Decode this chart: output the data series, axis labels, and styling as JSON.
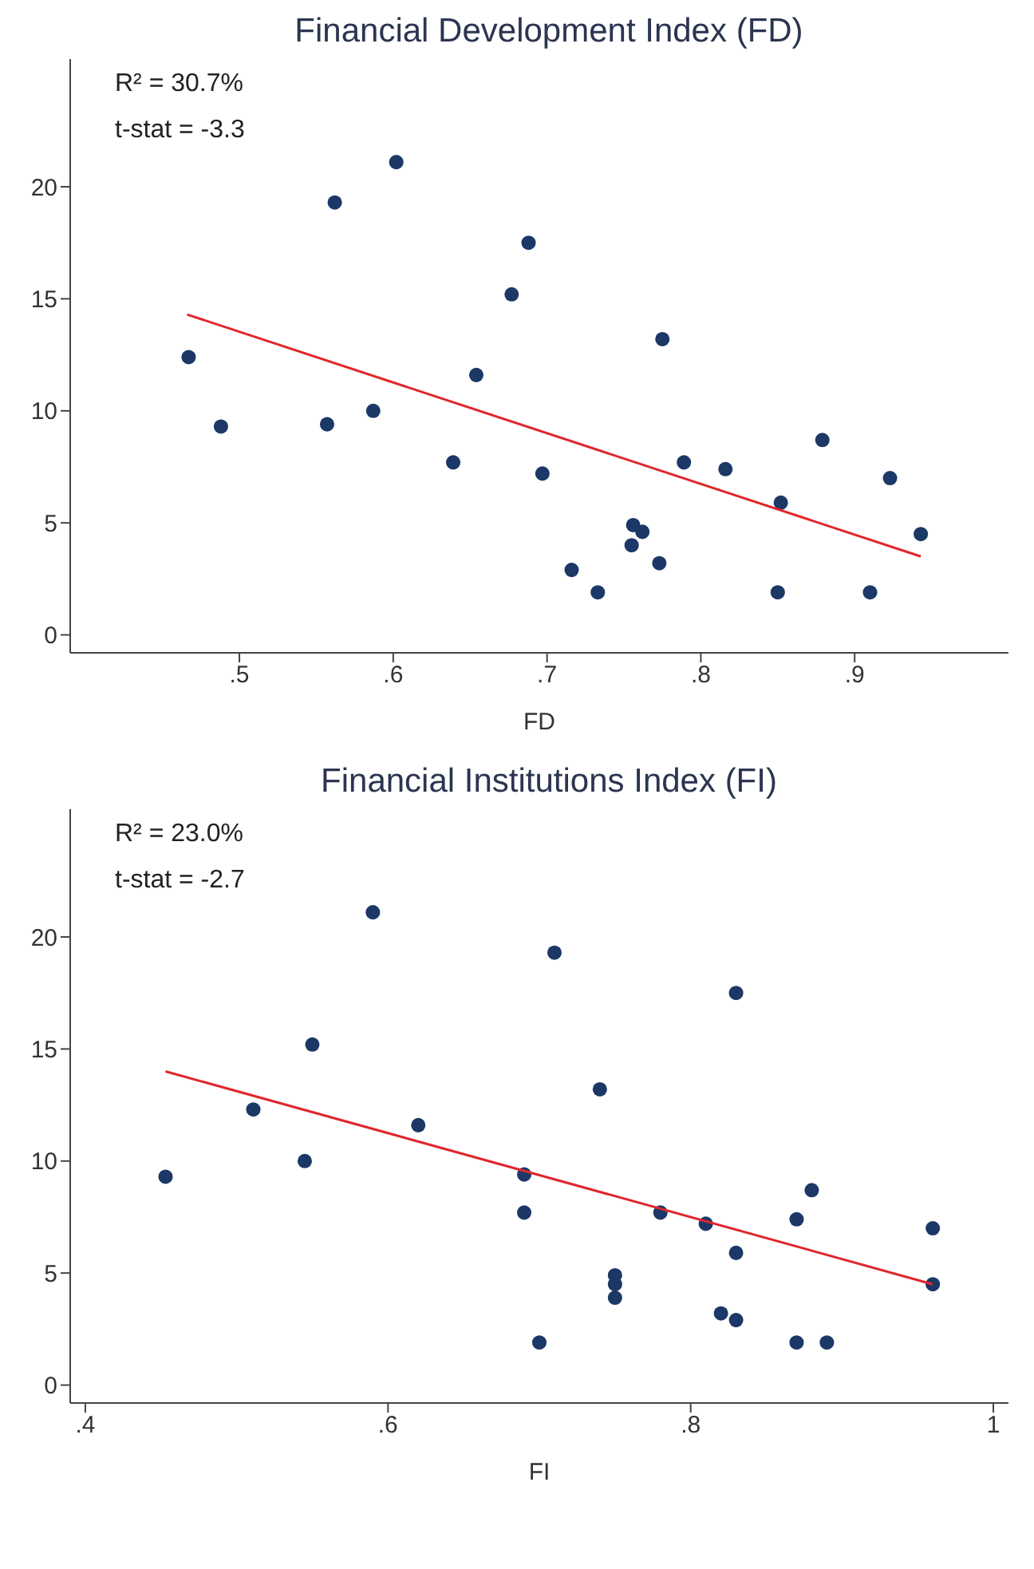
{
  "chart_data": [
    {
      "type": "scatter",
      "title": "Financial Development Index (FD)",
      "xlabel": "FD",
      "annotations": [
        "R² = 30.7%",
        "t-stat = -3.3"
      ],
      "xlim": [
        0.39,
        1.0
      ],
      "xticks": [
        {
          "value": 0.5,
          "label": ".5"
        },
        {
          "value": 0.6,
          "label": ".6"
        },
        {
          "value": 0.7,
          "label": ".7"
        },
        {
          "value": 0.8,
          "label": ".8"
        },
        {
          "value": 0.9,
          "label": ".9"
        }
      ],
      "ylim": [
        -0.8,
        25.7
      ],
      "yticks": [
        0,
        5,
        10,
        15,
        20
      ],
      "grid": false,
      "legend": false,
      "series": [
        {
          "marker": "circle",
          "color": "#1b3866",
          "x": [
            0.467,
            0.488,
            0.557,
            0.562,
            0.587,
            0.602,
            0.639,
            0.654,
            0.677,
            0.688,
            0.697,
            0.716,
            0.733,
            0.755,
            0.756,
            0.762,
            0.773,
            0.775,
            0.789,
            0.816,
            0.85,
            0.852,
            0.879,
            0.91,
            0.923,
            0.943
          ],
          "values": [
            12.4,
            9.3,
            9.4,
            19.3,
            10.0,
            21.1,
            7.7,
            11.6,
            15.2,
            17.5,
            7.2,
            2.9,
            1.9,
            4.0,
            4.9,
            4.6,
            3.2,
            13.2,
            7.7,
            7.4,
            1.9,
            5.9,
            8.7,
            1.9,
            7.0,
            4.5
          ]
        },
        {
          "type": "line",
          "marker": "none",
          "color": "#e0262b",
          "x": [
            0.466,
            0.943
          ],
          "values": [
            14.3,
            3.5
          ]
        }
      ]
    },
    {
      "type": "scatter",
      "title": "Financial Institutions Index (FI)",
      "xlabel": "FI",
      "annotations": [
        "R² = 23.0%",
        "t-stat = -2.7"
      ],
      "xlim": [
        0.39,
        1.01
      ],
      "xticks": [
        {
          "value": 0.4,
          "label": ".4"
        },
        {
          "value": 0.6,
          "label": ".6"
        },
        {
          "value": 0.8,
          "label": ".8"
        },
        1
      ],
      "ylim": [
        -0.8,
        25.7
      ],
      "yticks": [
        0,
        5,
        10,
        15,
        20
      ],
      "grid": false,
      "legend": false,
      "series": [
        {
          "marker": "circle",
          "color": "#1b3866",
          "x": [
            0.453,
            0.511,
            0.545,
            0.55,
            0.59,
            0.62,
            0.69,
            0.69,
            0.7,
            0.71,
            0.74,
            0.75,
            0.75,
            0.75,
            0.78,
            0.81,
            0.82,
            0.83,
            0.83,
            0.83,
            0.87,
            0.87,
            0.88,
            0.89,
            0.96,
            0.96
          ],
          "values": [
            9.3,
            12.3,
            10.0,
            15.2,
            21.1,
            11.6,
            9.4,
            7.7,
            1.9,
            19.3,
            13.2,
            4.9,
            4.5,
            3.9,
            7.7,
            7.2,
            3.2,
            17.5,
            5.9,
            2.9,
            7.4,
            1.9,
            8.7,
            1.9,
            7.0,
            4.5
          ]
        },
        {
          "type": "line",
          "marker": "none",
          "color": "#e0262b",
          "x": [
            0.453,
            0.96
          ],
          "values": [
            14.0,
            4.5
          ]
        }
      ]
    }
  ]
}
